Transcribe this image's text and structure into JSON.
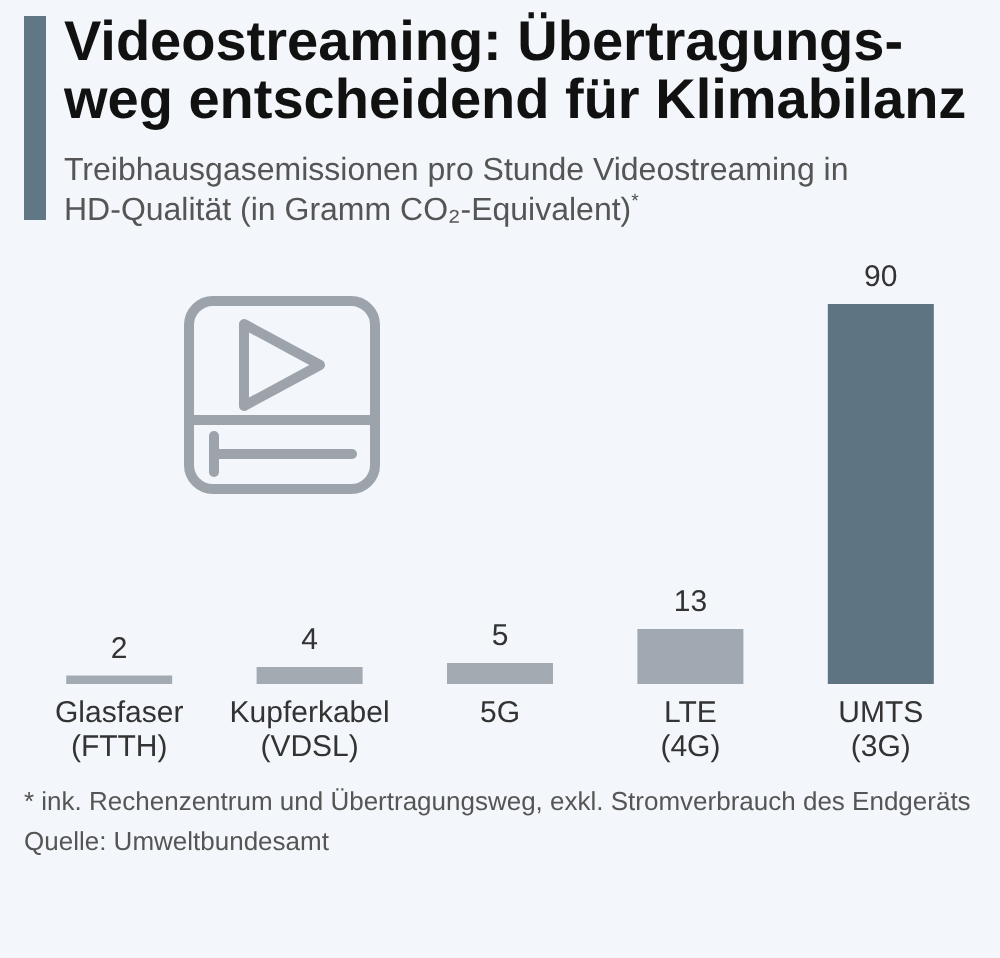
{
  "chart_data": {
    "type": "bar",
    "title": "Videostreaming: Übertragungs-\nweg entscheidend für Klimabilanz",
    "subtitle": "Treibhausgasemissionen pro Stunde Videostreaming in HD-Qualität (in Gramm CO₂-Equivalent)$^{*}$",
    "categories": [
      "Glasfaser\n(FTTH)",
      "Kupferkabel\n(VDSL)",
      "5G",
      "LTE\n(4G)",
      "UMTS\n(3G)"
    ],
    "values": [
      2,
      4,
      5,
      13,
      90
    ],
    "colors": [
      "#a4aab1",
      "#a4aab1",
      "#a4aab1",
      "#a0a9b1",
      "#5f7482"
    ],
    "data_labels": true,
    "annotations": [
      "* ink. Rechenzentrum und Übertragungsweg, exkl. Stromverbrauch des Endgeräts",
      "Quelle: Umweltbundesamt"
    ]
  }
}
